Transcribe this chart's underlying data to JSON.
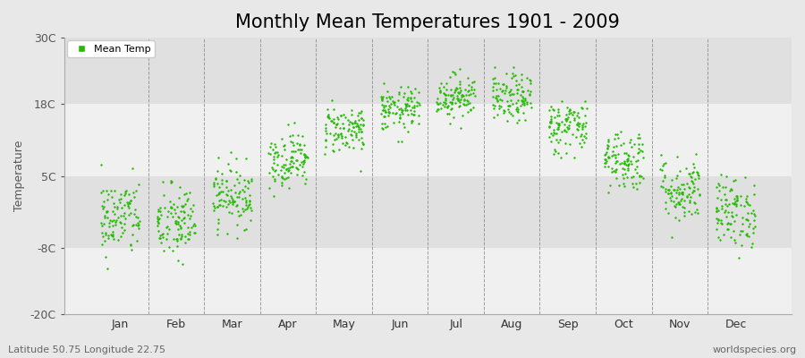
{
  "title": "Monthly Mean Temperatures 1901 - 2009",
  "ylabel": "Temperature",
  "xlabel_labels": [
    "Jan",
    "Feb",
    "Mar",
    "Apr",
    "May",
    "Jun",
    "Jul",
    "Aug",
    "Sep",
    "Oct",
    "Nov",
    "Dec"
  ],
  "ytick_labels": [
    "-20C",
    "-8C",
    "5C",
    "18C",
    "30C"
  ],
  "ytick_values": [
    -20,
    -8,
    5,
    18,
    30
  ],
  "ylim": [
    -20,
    30
  ],
  "dot_color": "#22bb00",
  "dot_size": 3,
  "background_color": "#e8e8e8",
  "plot_bg_color": "#ffffff",
  "band_colors": [
    "#f0f0f0",
    "#e0e0e0"
  ],
  "legend_label": "Mean Temp",
  "legend_marker": "s",
  "legend_marker_color": "#22bb00",
  "footer_left": "Latitude 50.75 Longitude 22.75",
  "footer_right": "worldspecies.org",
  "title_fontsize": 15,
  "axis_label_fontsize": 9,
  "tick_fontsize": 9,
  "footer_fontsize": 8,
  "years": 109,
  "monthly_means": [
    -2.5,
    -3.5,
    1.5,
    8.0,
    13.5,
    17.0,
    19.5,
    19.0,
    14.0,
    8.0,
    2.5,
    -1.5
  ],
  "monthly_stds": [
    3.5,
    3.5,
    2.8,
    2.5,
    2.2,
    2.0,
    2.0,
    2.2,
    2.5,
    2.8,
    3.0,
    3.2
  ],
  "seed": 42,
  "xlim_left": -0.5,
  "xlim_right": 12.5
}
